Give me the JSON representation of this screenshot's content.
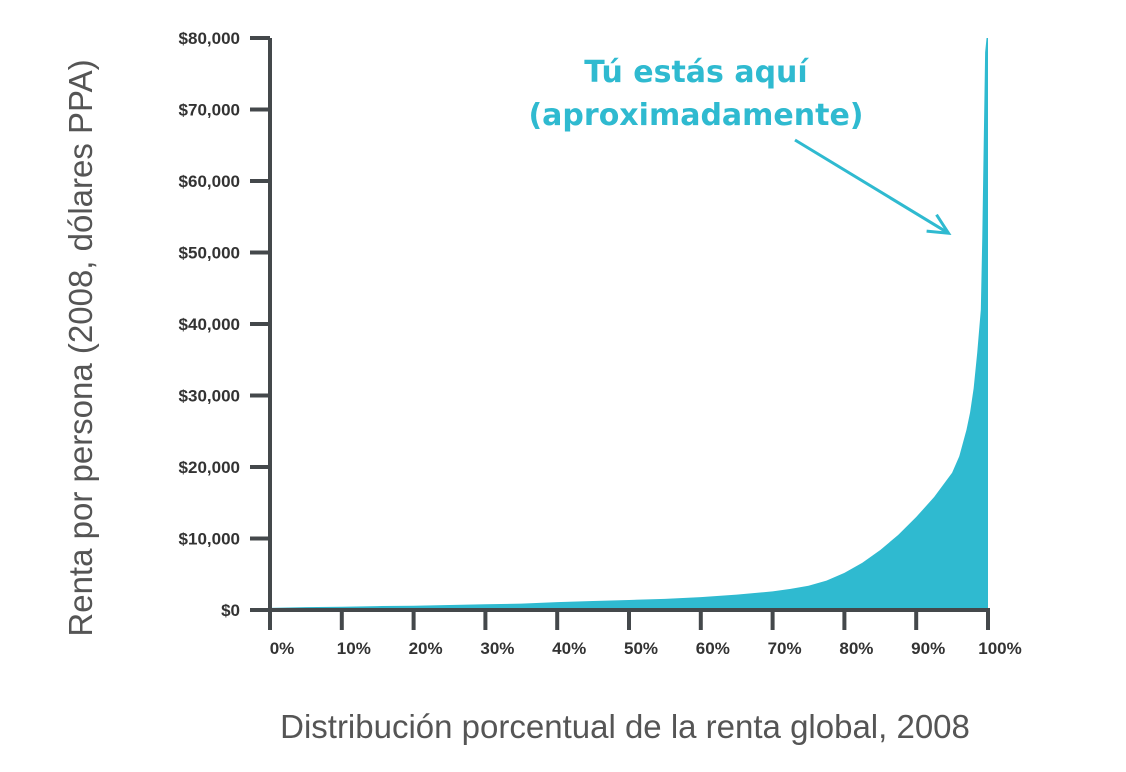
{
  "chart_data": {
    "type": "area",
    "title": "",
    "xlabel": "Distribución porcentual de la renta global, 2008",
    "ylabel": "Renta por persona (2008, dólares PPA)",
    "x_tick_labels": [
      "0%",
      "10%",
      "20%",
      "30%",
      "40%",
      "50%",
      "60%",
      "70%",
      "80%",
      "90%",
      "100%"
    ],
    "y_tick_labels": [
      "$0",
      "$10,000",
      "$20,000",
      "$30,000",
      "$40,000",
      "$50,000",
      "$60,000",
      "$70,000",
      "$80,000"
    ],
    "xlim": [
      0,
      100
    ],
    "ylim": [
      0,
      80000
    ],
    "grid": false,
    "fill_color": "#2fbad0",
    "series": [
      {
        "x": [
          0,
          5,
          10,
          15,
          20,
          25,
          30,
          35,
          40,
          45,
          50,
          55,
          60,
          65,
          70,
          72.5,
          75,
          77.5,
          80,
          82.5,
          85,
          87.5,
          90,
          92.5,
          95,
          96,
          97,
          97.5,
          98,
          98.5,
          99,
          99.2,
          99.4,
          99.6,
          99.8,
          100
        ],
        "y": [
          300,
          400,
          450,
          550,
          600,
          700,
          800,
          900,
          1100,
          1250,
          1400,
          1550,
          1800,
          2150,
          2600,
          2950,
          3400,
          4100,
          5200,
          6600,
          8400,
          10500,
          13000,
          15800,
          19200,
          21500,
          25200,
          27600,
          31000,
          36000,
          42000,
          52000,
          65000,
          78000,
          80000,
          80000
        ]
      }
    ],
    "annotations": [
      {
        "lines": [
          "Tú estás aquí",
          "(aproximadamente)"
        ],
        "arrow_target": [
          94.5,
          52700
        ]
      }
    ],
    "colors": {
      "axis": "#44484b",
      "tick_text": "#333333",
      "title_text": "#555555",
      "annotation": "#2fbad0"
    }
  }
}
